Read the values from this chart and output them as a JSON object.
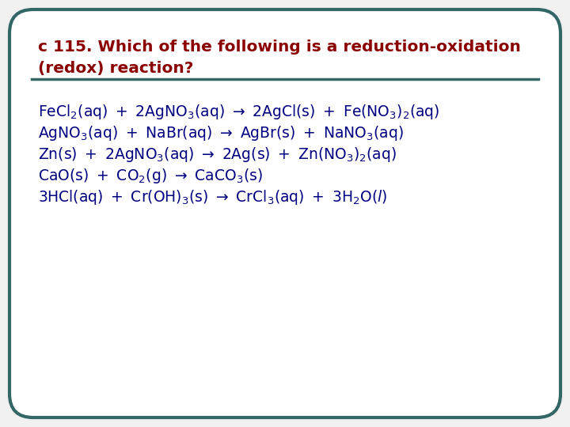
{
  "bg_color": "#f0f0f0",
  "box_color": "#ffffff",
  "border_color": "#336666",
  "title_color": "#8b0000",
  "title_line1": "c 115. Which of the following is a reduction-oxidation",
  "title_line2": "(redox) reaction?",
  "line_color": "#336666",
  "body_color": "#000080",
  "figsize": [
    7.2,
    5.4
  ],
  "dpi": 100,
  "title_fontsize": 14.5,
  "body_fontsize": 13.5
}
